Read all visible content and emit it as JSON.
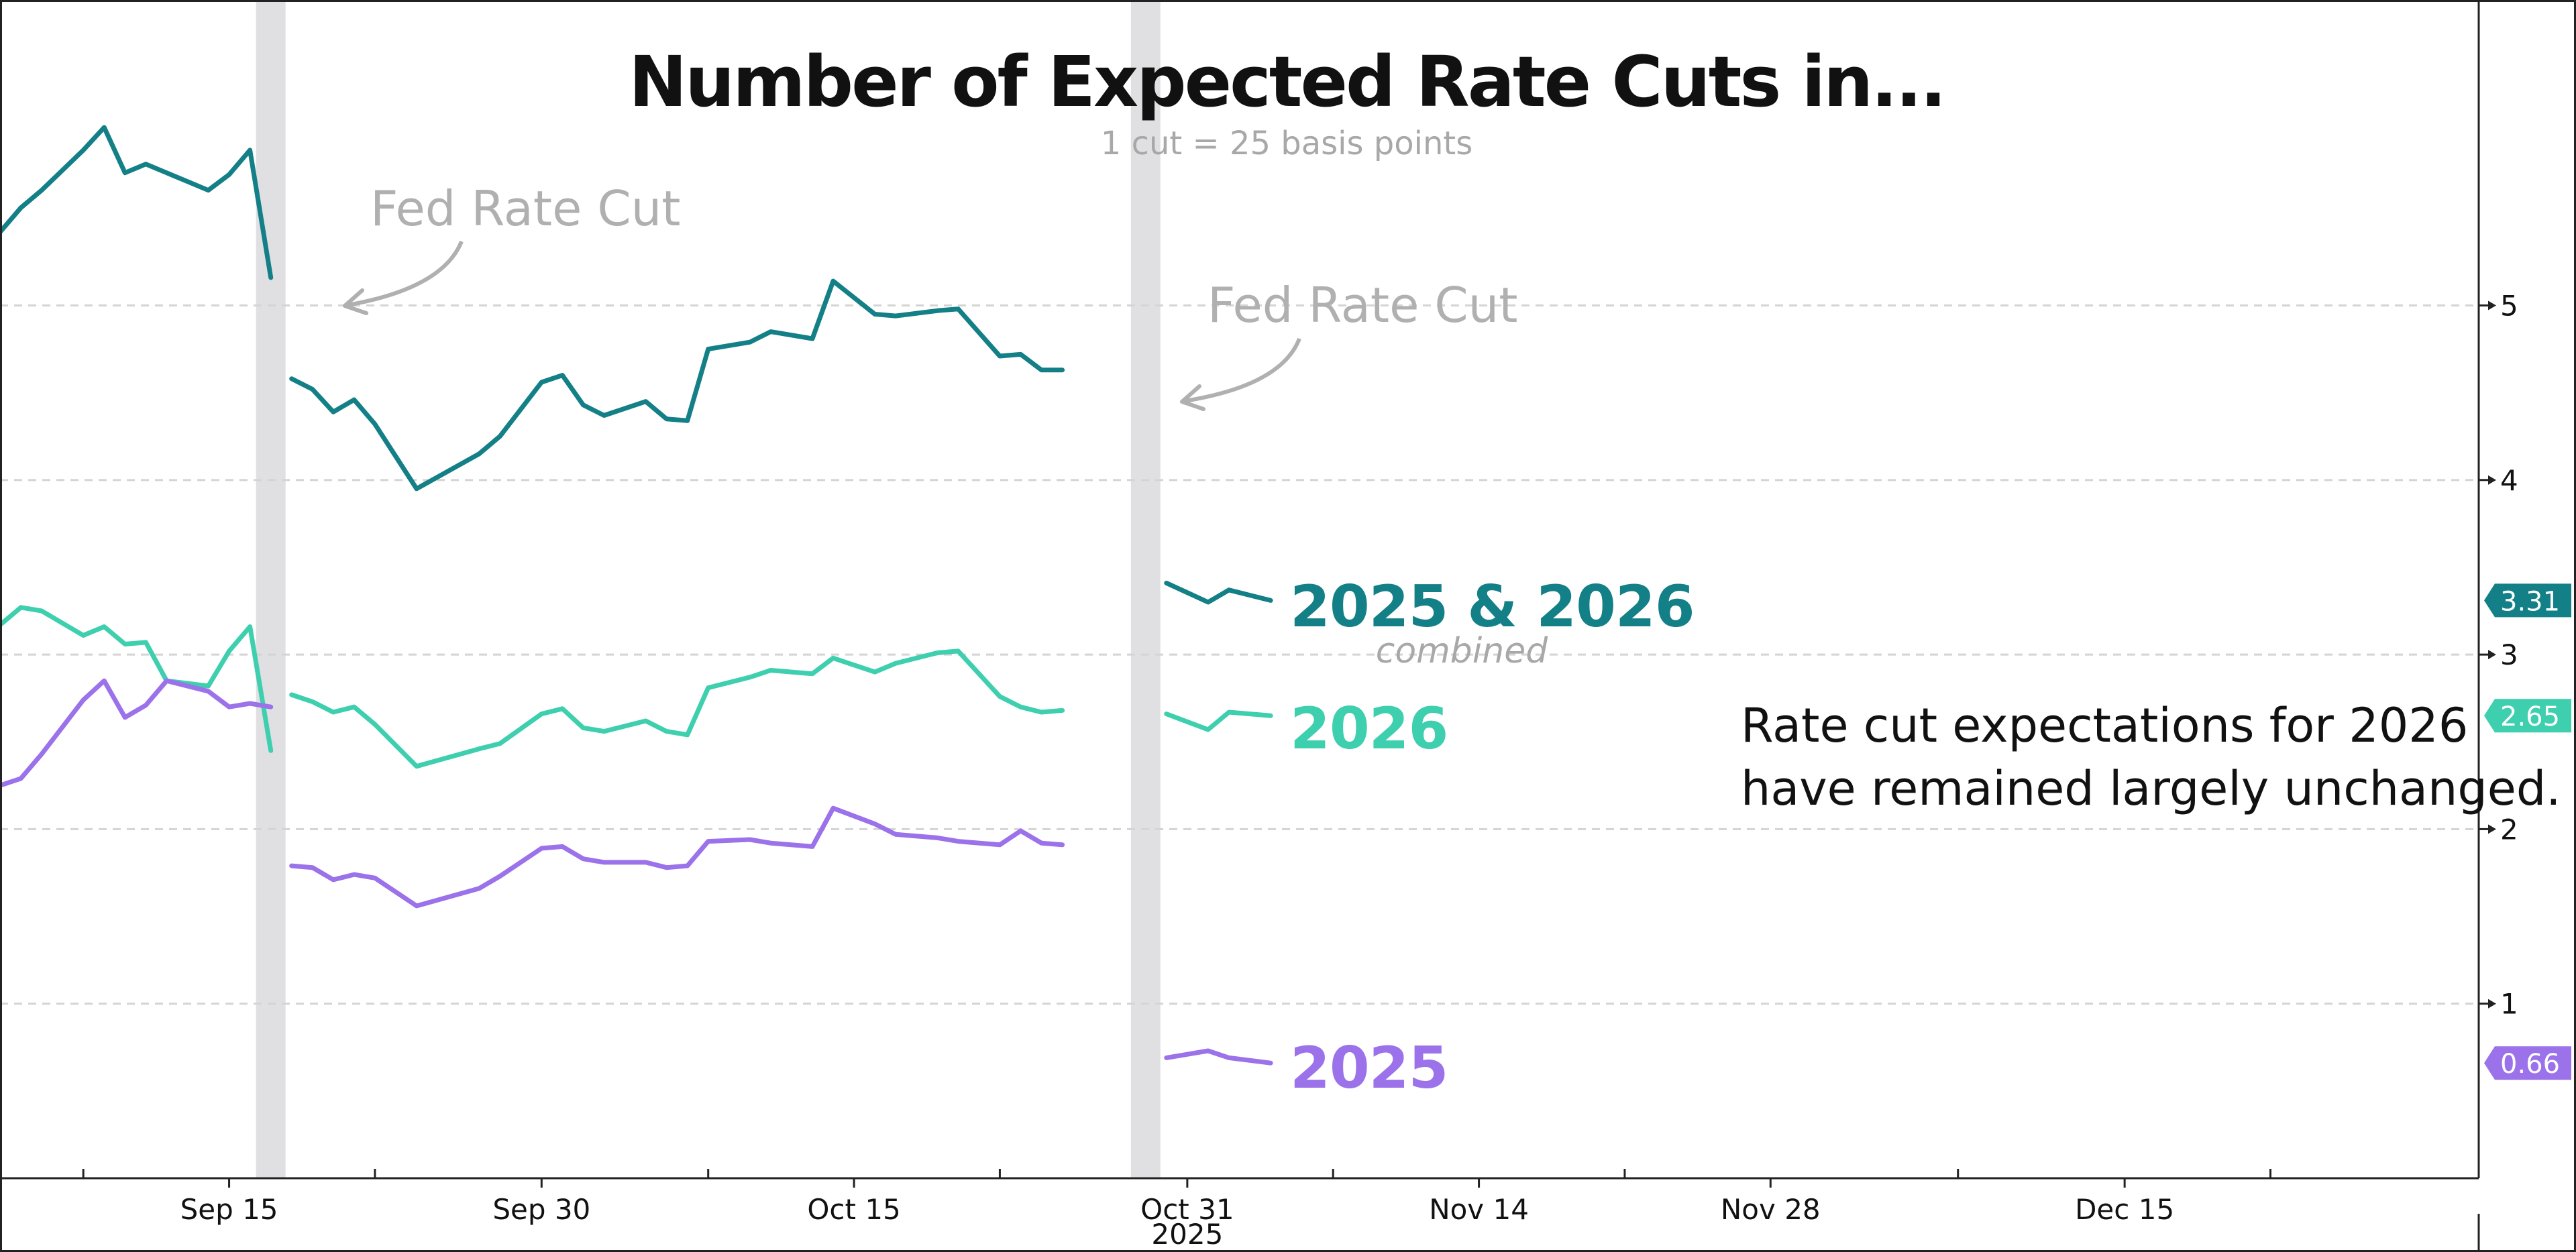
{
  "chart_data": {
    "type": "line",
    "title": "Number of Expected Rate Cuts in...",
    "subtitle": "1 cut = 25 basis points",
    "xlabel": "",
    "ylabel": "",
    "ylim": [
      0,
      6.75
    ],
    "xlim": [
      "2025-09-04",
      "2026-01-01"
    ],
    "grid": true,
    "legend": "labels at line ends",
    "y_ticks": [
      1,
      2,
      3,
      4,
      5
    ],
    "x_ticks": [
      {
        "date": "2025-09-15",
        "label": "Sep 15"
      },
      {
        "date": "2025-09-30",
        "label": "Sep 30"
      },
      {
        "date": "2025-10-15",
        "label": "Oct 15"
      },
      {
        "date": "2025-10-31",
        "label": "Oct 31"
      },
      {
        "date": "2025-11-14",
        "label": "Nov 14"
      },
      {
        "date": "2025-11-28",
        "label": "Nov 28"
      },
      {
        "date": "2025-12-15",
        "label": "Dec 15"
      }
    ],
    "x_minor_ticks": [
      "2025-09-08",
      "2025-09-22",
      "2025-10-08",
      "2025-10-22",
      "2025-11-07",
      "2025-11-21",
      "2025-12-07",
      "2025-12-22"
    ],
    "x_year_label": "2025",
    "fed_rate_cuts": [
      "2025-09-17",
      "2025-10-29"
    ],
    "annotations": [
      {
        "text": "Fed Rate Cut",
        "date": "2025-09-17"
      },
      {
        "text": "Fed Rate Cut",
        "date": "2025-10-29"
      },
      {
        "text": "combined"
      },
      {
        "text": "Rate cut expectations for 2026"
      },
      {
        "text": "have remained largely unchanged."
      }
    ],
    "series": [
      {
        "name": "2025 & 2026",
        "color": "#137f86",
        "last_value": "3.31",
        "segments": [
          [
            [
              "2025-09-04",
              5.42
            ],
            [
              "2025-09-05",
              5.56
            ],
            [
              "2025-09-06",
              5.66
            ],
            [
              "2025-09-08",
              5.89
            ],
            [
              "2025-09-09",
              6.02
            ],
            [
              "2025-09-10",
              5.76
            ],
            [
              "2025-09-11",
              5.81
            ],
            [
              "2025-09-12",
              5.76
            ],
            [
              "2025-09-13",
              5.71
            ],
            [
              "2025-09-14",
              5.66
            ],
            [
              "2025-09-15",
              5.75
            ],
            [
              "2025-09-16",
              5.89
            ],
            [
              "2025-09-17",
              5.16
            ]
          ],
          [
            [
              "2025-09-18",
              4.58
            ],
            [
              "2025-09-19",
              4.52
            ],
            [
              "2025-09-20",
              4.39
            ],
            [
              "2025-09-21",
              4.46
            ],
            [
              "2025-09-22",
              4.32
            ],
            [
              "2025-09-24",
              3.95
            ],
            [
              "2025-09-27",
              4.15
            ],
            [
              "2025-09-28",
              4.25
            ],
            [
              "2025-09-30",
              4.56
            ],
            [
              "2025-10-01",
              4.6
            ],
            [
              "2025-10-02",
              4.43
            ],
            [
              "2025-10-03",
              4.37
            ],
            [
              "2025-10-05",
              4.45
            ],
            [
              "2025-10-06",
              4.35
            ],
            [
              "2025-10-07",
              4.34
            ],
            [
              "2025-10-08",
              4.75
            ],
            [
              "2025-10-10",
              4.79
            ],
            [
              "2025-10-11",
              4.85
            ],
            [
              "2025-10-13",
              4.81
            ],
            [
              "2025-10-14",
              5.14
            ],
            [
              "2025-10-16",
              4.95
            ],
            [
              "2025-10-17",
              4.94
            ],
            [
              "2025-10-19",
              4.97
            ],
            [
              "2025-10-20",
              4.98
            ],
            [
              "2025-10-22",
              4.71
            ],
            [
              "2025-10-23",
              4.72
            ],
            [
              "2025-10-24",
              4.63
            ],
            [
              "2025-10-25",
              4.63
            ]
          ],
          [
            [
              "2025-10-30",
              3.41
            ],
            [
              "2025-11-01",
              3.3
            ],
            [
              "2025-11-02",
              3.37
            ],
            [
              "2025-11-04",
              3.31
            ]
          ]
        ]
      },
      {
        "name": "2026",
        "color": "#3dcfae",
        "last_value": "2.65",
        "segments": [
          [
            [
              "2025-09-04",
              3.17
            ],
            [
              "2025-09-05",
              3.27
            ],
            [
              "2025-09-06",
              3.25
            ],
            [
              "2025-09-08",
              3.11
            ],
            [
              "2025-09-09",
              3.16
            ],
            [
              "2025-09-10",
              3.06
            ],
            [
              "2025-09-11",
              3.07
            ],
            [
              "2025-09-12",
              2.85
            ],
            [
              "2025-09-14",
              2.82
            ],
            [
              "2025-09-15",
              3.02
            ],
            [
              "2025-09-16",
              3.16
            ],
            [
              "2025-09-17",
              2.45
            ]
          ],
          [
            [
              "2025-09-18",
              2.77
            ],
            [
              "2025-09-19",
              2.73
            ],
            [
              "2025-09-20",
              2.67
            ],
            [
              "2025-09-21",
              2.7
            ],
            [
              "2025-09-22",
              2.6
            ],
            [
              "2025-09-24",
              2.36
            ],
            [
              "2025-09-27",
              2.46
            ],
            [
              "2025-09-28",
              2.49
            ],
            [
              "2025-09-30",
              2.66
            ],
            [
              "2025-10-01",
              2.69
            ],
            [
              "2025-10-02",
              2.58
            ],
            [
              "2025-10-03",
              2.56
            ],
            [
              "2025-10-05",
              2.62
            ],
            [
              "2025-10-06",
              2.56
            ],
            [
              "2025-10-07",
              2.54
            ],
            [
              "2025-10-08",
              2.81
            ],
            [
              "2025-10-10",
              2.87
            ],
            [
              "2025-10-11",
              2.91
            ],
            [
              "2025-10-13",
              2.89
            ],
            [
              "2025-10-14",
              2.98
            ],
            [
              "2025-10-16",
              2.9
            ],
            [
              "2025-10-17",
              2.95
            ],
            [
              "2025-10-19",
              3.01
            ],
            [
              "2025-10-20",
              3.02
            ],
            [
              "2025-10-22",
              2.76
            ],
            [
              "2025-10-23",
              2.7
            ],
            [
              "2025-10-24",
              2.67
            ],
            [
              "2025-10-25",
              2.68
            ]
          ],
          [
            [
              "2025-10-30",
              2.66
            ],
            [
              "2025-11-01",
              2.57
            ],
            [
              "2025-11-02",
              2.67
            ],
            [
              "2025-11-04",
              2.65
            ]
          ]
        ]
      },
      {
        "name": "2025",
        "color": "#9b72ea",
        "last_value": "0.66",
        "segments": [
          [
            [
              "2025-09-04",
              2.25
            ],
            [
              "2025-09-05",
              2.29
            ],
            [
              "2025-09-06",
              2.43
            ],
            [
              "2025-09-08",
              2.74
            ],
            [
              "2025-09-09",
              2.85
            ],
            [
              "2025-09-10",
              2.64
            ],
            [
              "2025-09-11",
              2.71
            ],
            [
              "2025-09-12",
              2.85
            ],
            [
              "2025-09-14",
              2.79
            ],
            [
              "2025-09-15",
              2.7
            ],
            [
              "2025-09-16",
              2.72
            ],
            [
              "2025-09-17",
              2.7
            ]
          ],
          [
            [
              "2025-09-18",
              1.79
            ],
            [
              "2025-09-19",
              1.78
            ],
            [
              "2025-09-20",
              1.71
            ],
            [
              "2025-09-21",
              1.74
            ],
            [
              "2025-09-22",
              1.72
            ],
            [
              "2025-09-24",
              1.56
            ],
            [
              "2025-09-27",
              1.66
            ],
            [
              "2025-09-28",
              1.73
            ],
            [
              "2025-09-30",
              1.89
            ],
            [
              "2025-10-01",
              1.9
            ],
            [
              "2025-10-02",
              1.83
            ],
            [
              "2025-10-03",
              1.81
            ],
            [
              "2025-10-05",
              1.81
            ],
            [
              "2025-10-06",
              1.78
            ],
            [
              "2025-10-07",
              1.79
            ],
            [
              "2025-10-08",
              1.93
            ],
            [
              "2025-10-10",
              1.94
            ],
            [
              "2025-10-11",
              1.92
            ],
            [
              "2025-10-13",
              1.9
            ],
            [
              "2025-10-14",
              2.12
            ],
            [
              "2025-10-16",
              2.03
            ],
            [
              "2025-10-17",
              1.97
            ],
            [
              "2025-10-19",
              1.95
            ],
            [
              "2025-10-20",
              1.93
            ],
            [
              "2025-10-22",
              1.91
            ],
            [
              "2025-10-23",
              1.99
            ],
            [
              "2025-10-24",
              1.92
            ],
            [
              "2025-10-25",
              1.91
            ]
          ],
          [
            [
              "2025-10-30",
              0.69
            ],
            [
              "2025-11-01",
              0.73
            ],
            [
              "2025-11-02",
              0.69
            ],
            [
              "2025-11-04",
              0.66
            ]
          ]
        ]
      }
    ]
  },
  "colors": {
    "teal": "#137f86",
    "mint": "#3dcfae",
    "purple": "#9b72ea",
    "grid": "#d4d4d4",
    "band": "#e0e0e3",
    "annotation_gray": "#b0b0b0"
  }
}
